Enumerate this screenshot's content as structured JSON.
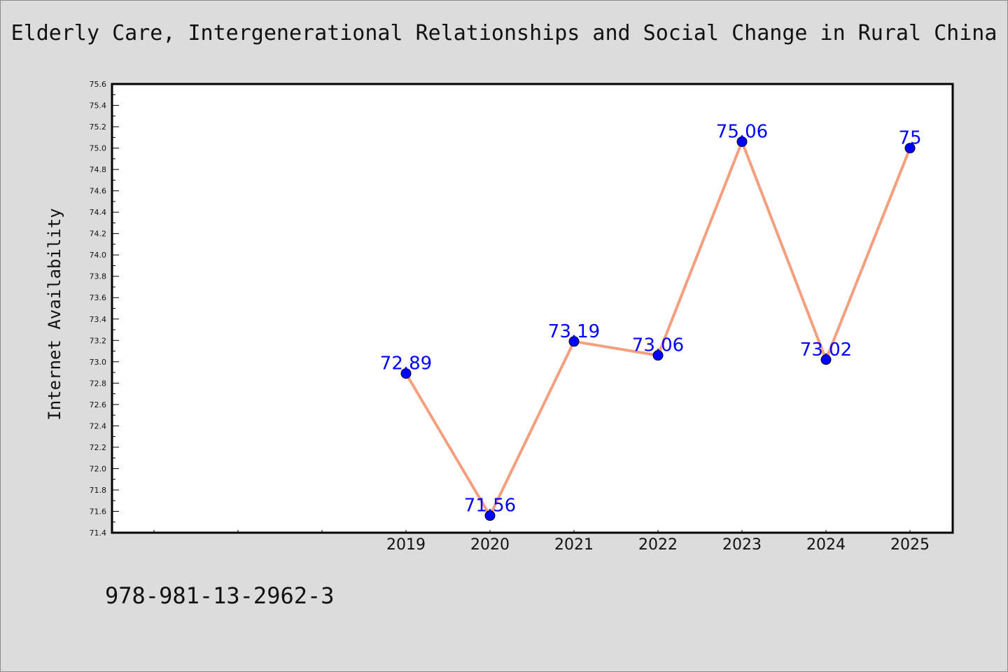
{
  "chart_data": {
    "type": "line",
    "title": "Elderly Care, Intergenerational Relationships and Social Change in Rural China",
    "xlabel": "",
    "ylabel": "Internet Availability",
    "categories": [
      "2019",
      "2020",
      "2021",
      "2022",
      "2023",
      "2024",
      "2025"
    ],
    "series": [
      {
        "values": [
          72.89,
          71.56,
          73.19,
          73.06,
          75.06,
          73.02,
          75
        ],
        "labels": [
          "72.89",
          "71.56",
          "73.19",
          "73.06",
          "75.06",
          "73.02",
          "75"
        ]
      }
    ],
    "ylim": [
      71.4,
      75.6
    ],
    "yticks": [
      "71.4",
      "71.6",
      "71.8",
      "72.0",
      "72.2",
      "72.4",
      "72.6",
      "72.8",
      "73.0",
      "73.2",
      "73.4",
      "73.6",
      "73.8",
      "74.0",
      "74.2",
      "74.4",
      "74.6",
      "74.8",
      "75.0",
      "75.2",
      "75.4",
      "75.6"
    ],
    "grid": false,
    "line_color": "#f4a07f",
    "marker_color": "#0000ff",
    "label_color": "#0000ff",
    "annotation": "978-981-13-2962-3"
  }
}
